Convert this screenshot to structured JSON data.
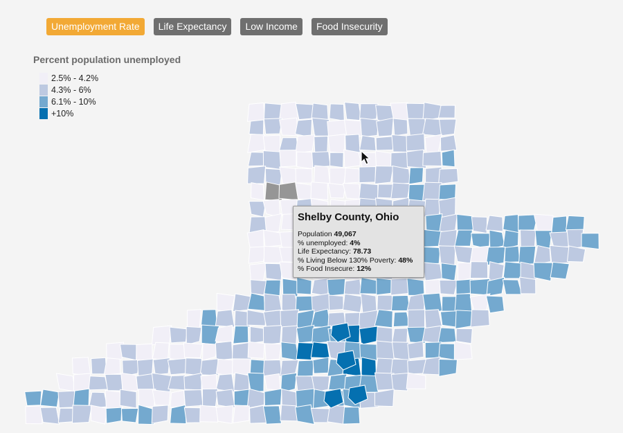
{
  "tabs": [
    {
      "label": "Unemployment Rate",
      "active": true
    },
    {
      "label": "Life Expectancy",
      "active": false
    },
    {
      "label": "Low Income",
      "active": false
    },
    {
      "label": "Food Insecurity",
      "active": false
    }
  ],
  "legend": {
    "title": "Percent population unemployed",
    "items": [
      {
        "label": "2.5% - 4.2%",
        "color": "#f1eff7"
      },
      {
        "label": "4.3% - 6%",
        "color": "#bdc9e1"
      },
      {
        "label": "6.1% - 10%",
        "color": "#74a9cf"
      },
      {
        "label": "+10%",
        "color": "#0570b0"
      }
    ]
  },
  "no_data_color": "#969696",
  "tooltip": {
    "title": "Shelby County, Ohio",
    "rows": [
      {
        "label": "Population ",
        "value": "49,067"
      },
      {
        "label": "% unemployed: ",
        "value": "4%"
      },
      {
        "label": "Life Expectancy: ",
        "value": "78.73"
      },
      {
        "label": "% Living Below 130% Poverty: ",
        "value": "48%"
      },
      {
        "label": "% Food Insecure: ",
        "value": "12%"
      }
    ]
  }
}
